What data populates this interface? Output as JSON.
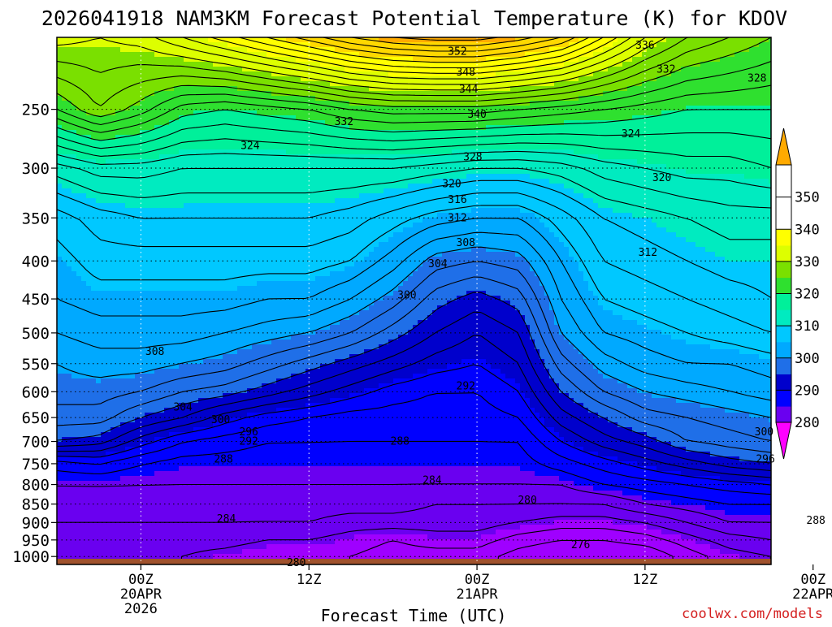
{
  "chart_data": {
    "type": "heatmap",
    "title": "2026041918 NAM3KM Forecast Potential Temperature (K) for KDOV",
    "xlabel": "Forecast Time (UTC)",
    "ylabel": "",
    "credit": "coolwx.com/models",
    "units": "K",
    "y_axis": {
      "scale": "log",
      "reversed": true,
      "range": [
        200,
        1025
      ],
      "ticks": [
        250,
        300,
        350,
        400,
        450,
        500,
        550,
        600,
        650,
        700,
        750,
        800,
        850,
        900,
        950,
        1000
      ]
    },
    "x_axis": {
      "range_hours": [
        -6,
        45
      ],
      "ticks": [
        {
          "hour": 0,
          "lines": [
            "00Z",
            "20APR",
            "2026"
          ]
        },
        {
          "hour": 12,
          "lines": [
            "12Z"
          ]
        },
        {
          "hour": 24,
          "lines": [
            "00Z",
            "21APR"
          ]
        },
        {
          "hour": 36,
          "lines": [
            "12Z"
          ]
        },
        {
          "hour": 48,
          "lines": [
            "00Z",
            "22APR"
          ]
        }
      ]
    },
    "grid": true,
    "colorbar": {
      "position": "right",
      "levels": [
        270,
        280,
        290,
        300,
        310,
        320,
        330,
        340,
        350,
        360
      ],
      "labels": [
        "280",
        "290",
        "300",
        "310",
        "320",
        "330",
        "340",
        "350"
      ],
      "colors": [
        "#ff00ff",
        "#9f00ff",
        "#6a00f0",
        "#0000ff",
        "#0000cc",
        "#1f6fe8",
        "#00a9ff",
        "#00c8ff",
        "#00ebc0",
        "#00f09a",
        "#2fe02f",
        "#7ae000",
        "#ddff00",
        "#ffff00",
        "#ffd800",
        "#ffaa00"
      ]
    },
    "x_hours": [
      -6,
      -3,
      0,
      3,
      6,
      9,
      12,
      15,
      18,
      21,
      24,
      27,
      30,
      33,
      36,
      39,
      42,
      45
    ],
    "pressure_levels": [
      1000,
      950,
      900,
      850,
      800,
      750,
      700,
      650,
      600,
      550,
      500,
      450,
      400,
      350,
      300,
      250,
      200
    ],
    "theta": [
      [
        282,
        282,
        282,
        282,
        281,
        280,
        280,
        280,
        279,
        279,
        279,
        277,
        276,
        276,
        276,
        279,
        281,
        282
      ],
      [
        283,
        283,
        283,
        283,
        283,
        282,
        282,
        281,
        280,
        281,
        281,
        279,
        278,
        278,
        279,
        281,
        283,
        284
      ],
      [
        284,
        284,
        284,
        284,
        284,
        284,
        284,
        283,
        283,
        283,
        283,
        282,
        281,
        281,
        282,
        284,
        286,
        286
      ],
      [
        285,
        285,
        285,
        285,
        285,
        285,
        285,
        285,
        285,
        284,
        284,
        284,
        284,
        284,
        286,
        287,
        288,
        288
      ],
      [
        286,
        286,
        286,
        286,
        286,
        286,
        286,
        286,
        286,
        286,
        286,
        286,
        286,
        288,
        289,
        290,
        291,
        292
      ],
      [
        289,
        290,
        288,
        287,
        287,
        287,
        287,
        287,
        287,
        287,
        287,
        287,
        289,
        291,
        293,
        295,
        297,
        298
      ],
      [
        298,
        297,
        293,
        290,
        289,
        288,
        288,
        288,
        288,
        288,
        288,
        288,
        292,
        295,
        297,
        300,
        301,
        302
      ],
      [
        301,
        301,
        298,
        296,
        293,
        291,
        290,
        289,
        289,
        289,
        289,
        290,
        295,
        298,
        301,
        302,
        303,
        304
      ],
      [
        303,
        303,
        302,
        300,
        299,
        297,
        295,
        293,
        291,
        290,
        290,
        292,
        298,
        302,
        304,
        305,
        306,
        307
      ],
      [
        304,
        305,
        305,
        304,
        303,
        301,
        299,
        297,
        295,
        293,
        292,
        294,
        301,
        305,
        307,
        308,
        308,
        309
      ],
      [
        306,
        307,
        307,
        307,
        306,
        305,
        304,
        302,
        299,
        296,
        294,
        296,
        304,
        308,
        309,
        310,
        311,
        312
      ],
      [
        308,
        309,
        309,
        309,
        309,
        308,
        308,
        306,
        303,
        299,
        297,
        299,
        306,
        310,
        311,
        312,
        313,
        314
      ],
      [
        309,
        311,
        311,
        311,
        311,
        311,
        311,
        310,
        307,
        303,
        302,
        303,
        308,
        312,
        313,
        314,
        315,
        315
      ],
      [
        311,
        313,
        314,
        314,
        314,
        314,
        314,
        313,
        311,
        309,
        308,
        308,
        311,
        314,
        315,
        316,
        317,
        317
      ],
      [
        317,
        319,
        319,
        318,
        318,
        318,
        318,
        318,
        318,
        317,
        316,
        316,
        317,
        319,
        320,
        321,
        321,
        322
      ],
      [
        330,
        334,
        331,
        327,
        326,
        327,
        328,
        330,
        331,
        331,
        331,
        330,
        329,
        328,
        327,
        326,
        326,
        326
      ],
      [
        339,
        338,
        339,
        342,
        345,
        348,
        351,
        354,
        356,
        357,
        357,
        355,
        352,
        346,
        340,
        336,
        334,
        332
      ]
    ],
    "contour_labels": [
      {
        "text": "352",
        "hour": 22.6,
        "p": 209
      },
      {
        "text": "348",
        "hour": 23.2,
        "p": 223
      },
      {
        "text": "344",
        "hour": 23.4,
        "p": 235
      },
      {
        "text": "340",
        "hour": 24.0,
        "p": 254
      },
      {
        "text": "336",
        "hour": 36.0,
        "p": 205
      },
      {
        "text": "332",
        "hour": 37.5,
        "p": 221
      },
      {
        "text": "332",
        "hour": 14.5,
        "p": 260
      },
      {
        "text": "328",
        "hour": 44.0,
        "p": 227
      },
      {
        "text": "328",
        "hour": 23.7,
        "p": 290
      },
      {
        "text": "324",
        "hour": 7.8,
        "p": 280
      },
      {
        "text": "324",
        "hour": 35.0,
        "p": 270
      },
      {
        "text": "320",
        "hour": 22.2,
        "p": 315
      },
      {
        "text": "320",
        "hour": 37.2,
        "p": 309
      },
      {
        "text": "316",
        "hour": 22.6,
        "p": 331
      },
      {
        "text": "312",
        "hour": 22.6,
        "p": 350
      },
      {
        "text": "312",
        "hour": 36.2,
        "p": 390
      },
      {
        "text": "308",
        "hour": 23.2,
        "p": 378
      },
      {
        "text": "308",
        "hour": 1.0,
        "p": 530
      },
      {
        "text": "304",
        "hour": 21.2,
        "p": 404
      },
      {
        "text": "304",
        "hour": 3.0,
        "p": 630
      },
      {
        "text": "300",
        "hour": 19.0,
        "p": 445
      },
      {
        "text": "300",
        "hour": 5.7,
        "p": 655
      },
      {
        "text": "300",
        "hour": 44.5,
        "p": 680
      },
      {
        "text": "296",
        "hour": 7.7,
        "p": 680
      },
      {
        "text": "296",
        "hour": 44.6,
        "p": 740
      },
      {
        "text": "292",
        "hour": 23.2,
        "p": 590
      },
      {
        "text": "292",
        "hour": 7.7,
        "p": 700
      },
      {
        "text": "288",
        "hour": 18.5,
        "p": 700
      },
      {
        "text": "288",
        "hour": 5.9,
        "p": 740
      },
      {
        "text": "288",
        "hour": 48.2,
        "p": 895
      },
      {
        "text": "284",
        "hour": 20.8,
        "p": 790
      },
      {
        "text": "284",
        "hour": 6.1,
        "p": 890
      },
      {
        "text": "280",
        "hour": 27.6,
        "p": 840
      },
      {
        "text": "280",
        "hour": 11.1,
        "p": 1020
      },
      {
        "text": "276",
        "hour": 31.4,
        "p": 965
      }
    ],
    "ground": {
      "p_top": 1007,
      "color": "#a0522d"
    }
  }
}
